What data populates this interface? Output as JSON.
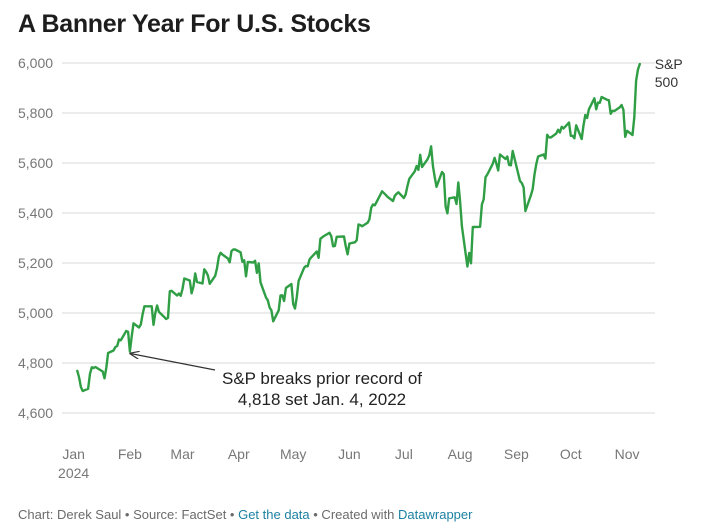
{
  "title": "A Banner Year For U.S. Stocks",
  "colors": {
    "line": "#2f9e44",
    "grid": "#d9d9d9",
    "text": "#333333",
    "muted": "#777777",
    "link": "#1d81a2"
  },
  "chart_data": {
    "type": "line",
    "title": "A Banner Year For U.S. Stocks",
    "xlabel": "",
    "ylabel": "",
    "ylim": [
      4600,
      6000
    ],
    "yticks": [
      "4,600",
      "4,800",
      "5,000",
      "5,200",
      "5,400",
      "5,600",
      "5,800",
      "6,000"
    ],
    "ytick_values": [
      4600,
      4800,
      5000,
      5200,
      5400,
      5600,
      5800,
      6000
    ],
    "xticks": [
      {
        "label": "Jan",
        "sublabel": "2024",
        "day": 0
      },
      {
        "label": "Feb",
        "day": 31
      },
      {
        "label": "Mar",
        "day": 60
      },
      {
        "label": "Apr",
        "day": 91
      },
      {
        "label": "May",
        "day": 121
      },
      {
        "label": "Jun",
        "day": 152
      },
      {
        "label": "Jul",
        "day": 182
      },
      {
        "label": "Aug",
        "day": 213
      },
      {
        "label": "Sep",
        "day": 244
      },
      {
        "label": "Oct",
        "day": 274
      },
      {
        "label": "Nov",
        "day": 305
      }
    ],
    "grid": true,
    "series": [
      {
        "name": "S&P 500",
        "name_line1": "S&P",
        "name_line2": "500",
        "values": [
          [
            2,
            4769
          ],
          [
            3,
            4742
          ],
          [
            4,
            4704
          ],
          [
            5,
            4688
          ],
          [
            8,
            4697
          ],
          [
            9,
            4757
          ],
          [
            10,
            4783
          ],
          [
            11,
            4780
          ],
          [
            12,
            4784
          ],
          [
            16,
            4766
          ],
          [
            17,
            4739
          ],
          [
            18,
            4781
          ],
          [
            19,
            4840
          ],
          [
            22,
            4850
          ],
          [
            23,
            4864
          ],
          [
            24,
            4868
          ],
          [
            25,
            4894
          ],
          [
            26,
            4891
          ],
          [
            29,
            4928
          ],
          [
            30,
            4925
          ],
          [
            31,
            4846
          ],
          [
            32,
            4906
          ],
          [
            33,
            4959
          ],
          [
            36,
            4942
          ],
          [
            37,
            4954
          ],
          [
            38,
            4995
          ],
          [
            39,
            5027
          ],
          [
            40,
            5027
          ],
          [
            43,
            5027
          ],
          [
            44,
            4953
          ],
          [
            45,
            5000
          ],
          [
            46,
            5030
          ],
          [
            47,
            5005
          ],
          [
            51,
            4976
          ],
          [
            52,
            4981
          ],
          [
            53,
            5087
          ],
          [
            54,
            5089
          ],
          [
            57,
            5070
          ],
          [
            58,
            5078
          ],
          [
            59,
            5069
          ],
          [
            60,
            5096
          ],
          [
            61,
            5138
          ],
          [
            64,
            5130
          ],
          [
            65,
            5079
          ],
          [
            66,
            5105
          ],
          [
            67,
            5158
          ],
          [
            68,
            5124
          ],
          [
            71,
            5118
          ],
          [
            72,
            5175
          ],
          [
            73,
            5165
          ],
          [
            74,
            5150
          ],
          [
            75,
            5117
          ],
          [
            78,
            5149
          ],
          [
            79,
            5179
          ],
          [
            80,
            5225
          ],
          [
            81,
            5241
          ],
          [
            82,
            5234
          ],
          [
            85,
            5218
          ],
          [
            86,
            5203
          ],
          [
            87,
            5248
          ],
          [
            88,
            5254
          ],
          [
            89,
            5254
          ],
          [
            92,
            5243
          ],
          [
            93,
            5205
          ],
          [
            94,
            5211
          ],
          [
            95,
            5147
          ],
          [
            96,
            5204
          ],
          [
            99,
            5202
          ],
          [
            100,
            5209
          ],
          [
            101,
            5161
          ],
          [
            102,
            5199
          ],
          [
            103,
            5123
          ],
          [
            106,
            5062
          ],
          [
            107,
            5051
          ],
          [
            108,
            5022
          ],
          [
            109,
            5011
          ],
          [
            110,
            4967
          ],
          [
            113,
            5011
          ],
          [
            114,
            5070
          ],
          [
            115,
            5071
          ],
          [
            116,
            5048
          ],
          [
            117,
            5100
          ],
          [
            120,
            5116
          ],
          [
            121,
            5036
          ],
          [
            122,
            5018
          ],
          [
            123,
            5064
          ],
          [
            124,
            5128
          ],
          [
            127,
            5181
          ],
          [
            128,
            5188
          ],
          [
            129,
            5187
          ],
          [
            130,
            5214
          ],
          [
            131,
            5223
          ],
          [
            134,
            5246
          ],
          [
            135,
            5221
          ],
          [
            136,
            5297
          ],
          [
            137,
            5303
          ],
          [
            138,
            5308
          ],
          [
            141,
            5321
          ],
          [
            142,
            5307
          ],
          [
            143,
            5267
          ],
          [
            144,
            5268
          ],
          [
            145,
            5305
          ],
          [
            149,
            5306
          ],
          [
            150,
            5266
          ],
          [
            151,
            5235
          ],
          [
            152,
            5278
          ],
          [
            155,
            5283
          ],
          [
            156,
            5291
          ],
          [
            157,
            5354
          ],
          [
            158,
            5352
          ],
          [
            159,
            5347
          ],
          [
            162,
            5361
          ],
          [
            163,
            5375
          ],
          [
            164,
            5421
          ],
          [
            165,
            5434
          ],
          [
            166,
            5431
          ],
          [
            169,
            5473
          ],
          [
            170,
            5487
          ],
          [
            172,
            5473
          ],
          [
            173,
            5465
          ],
          [
            176,
            5448
          ],
          [
            177,
            5469
          ],
          [
            178,
            5477
          ],
          [
            179,
            5483
          ],
          [
            182,
            5460
          ],
          [
            183,
            5475
          ],
          [
            184,
            5509
          ],
          [
            185,
            5537
          ],
          [
            188,
            5567
          ],
          [
            189,
            5588
          ],
          [
            190,
            5573
          ],
          [
            191,
            5633
          ],
          [
            192,
            5584
          ],
          [
            195,
            5615
          ],
          [
            196,
            5631
          ],
          [
            197,
            5667
          ],
          [
            198,
            5589
          ],
          [
            199,
            5544
          ],
          [
            200,
            5505
          ],
          [
            203,
            5564
          ],
          [
            204,
            5555
          ],
          [
            205,
            5427
          ],
          [
            206,
            5399
          ],
          [
            207,
            5459
          ],
          [
            210,
            5463
          ],
          [
            211,
            5436
          ],
          [
            212,
            5522
          ],
          [
            213,
            5446
          ],
          [
            214,
            5347
          ],
          [
            217,
            5186
          ],
          [
            218,
            5240
          ],
          [
            219,
            5199
          ],
          [
            220,
            5344
          ],
          [
            221,
            5344
          ],
          [
            224,
            5345
          ],
          [
            225,
            5434
          ],
          [
            226,
            5455
          ],
          [
            227,
            5543
          ],
          [
            228,
            5554
          ],
          [
            231,
            5597
          ],
          [
            232,
            5621
          ],
          [
            233,
            5597
          ],
          [
            234,
            5570
          ],
          [
            235,
            5634
          ],
          [
            238,
            5616
          ],
          [
            239,
            5626
          ],
          [
            240,
            5592
          ],
          [
            241,
            5591
          ],
          [
            242,
            5648
          ],
          [
            246,
            5528
          ],
          [
            247,
            5520
          ],
          [
            248,
            5503
          ],
          [
            249,
            5408
          ],
          [
            252,
            5471
          ],
          [
            253,
            5496
          ],
          [
            254,
            5555
          ],
          [
            255,
            5596
          ],
          [
            256,
            5626
          ],
          [
            259,
            5634
          ],
          [
            260,
            5618
          ],
          [
            261,
            5713
          ],
          [
            262,
            5703
          ],
          [
            263,
            5702
          ],
          [
            266,
            5718
          ],
          [
            267,
            5733
          ],
          [
            268,
            5722
          ],
          [
            269,
            5745
          ],
          [
            270,
            5738
          ],
          [
            273,
            5762
          ],
          [
            274,
            5709
          ],
          [
            275,
            5709
          ],
          [
            276,
            5699
          ],
          [
            277,
            5751
          ],
          [
            280,
            5696
          ],
          [
            281,
            5751
          ],
          [
            282,
            5792
          ],
          [
            283,
            5780
          ],
          [
            284,
            5815
          ],
          [
            287,
            5859
          ],
          [
            288,
            5815
          ],
          [
            289,
            5842
          ],
          [
            290,
            5841
          ],
          [
            291,
            5864
          ],
          [
            294,
            5853
          ],
          [
            295,
            5851
          ],
          [
            296,
            5797
          ],
          [
            297,
            5809
          ],
          [
            298,
            5808
          ],
          [
            301,
            5823
          ],
          [
            302,
            5832
          ],
          [
            303,
            5813
          ],
          [
            304,
            5705
          ],
          [
            305,
            5729
          ],
          [
            308,
            5712
          ],
          [
            309,
            5783
          ],
          [
            310,
            5929
          ],
          [
            311,
            5973
          ],
          [
            312,
            5996
          ]
        ]
      }
    ],
    "annotation": {
      "text_line1": "S&P breaks prior record of",
      "text_line2": "4,818 set Jan. 4, 2022",
      "target_day": 29,
      "target_value": 4830
    }
  },
  "footer": {
    "prefix": "Chart: Derek Saul • Source: FactSet • ",
    "get_data": "Get the data",
    "created": " • Created with ",
    "datawrapper": "Datawrapper"
  }
}
